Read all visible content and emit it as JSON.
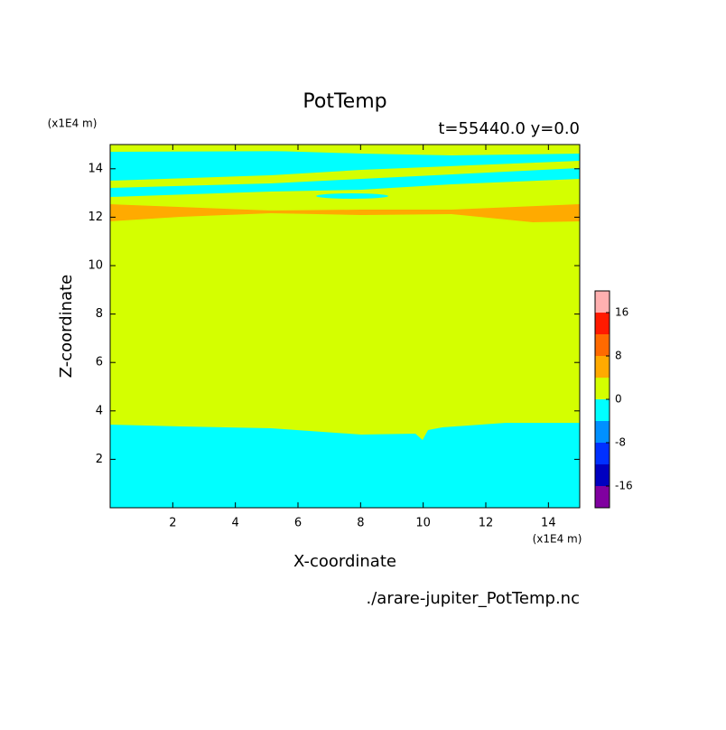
{
  "chart_data": {
    "type": "contour",
    "title": "PotTemp",
    "subtitle": "t=55440.0 y=0.0",
    "x_label": "X-coordinate",
    "y_label": "Z-coordinate",
    "x_unit": "(x1E4 m)",
    "y_unit": "(x1E4 m)",
    "source": "./arare-jupiter_PotTemp.nc",
    "xlim": [
      0,
      15
    ],
    "xticks": [
      2,
      4,
      6,
      8,
      10,
      12,
      14
    ],
    "ylim": [
      0,
      15
    ],
    "yticks": [
      2,
      4,
      6,
      8,
      10,
      12,
      14
    ],
    "levels": [
      -20,
      -16,
      -12,
      -8,
      -4,
      0,
      4,
      8,
      12,
      16,
      20
    ],
    "colors": [
      "#8000a0",
      "#0000c0",
      "#0030ff",
      "#0090ff",
      "#00ffff",
      "#d4ff00",
      "#ffaa00",
      "#ff6a00",
      "#ff1a00",
      "#ffb0b0"
    ],
    "colorbar_ticks": [
      -16,
      -8,
      0,
      8,
      16
    ]
  }
}
